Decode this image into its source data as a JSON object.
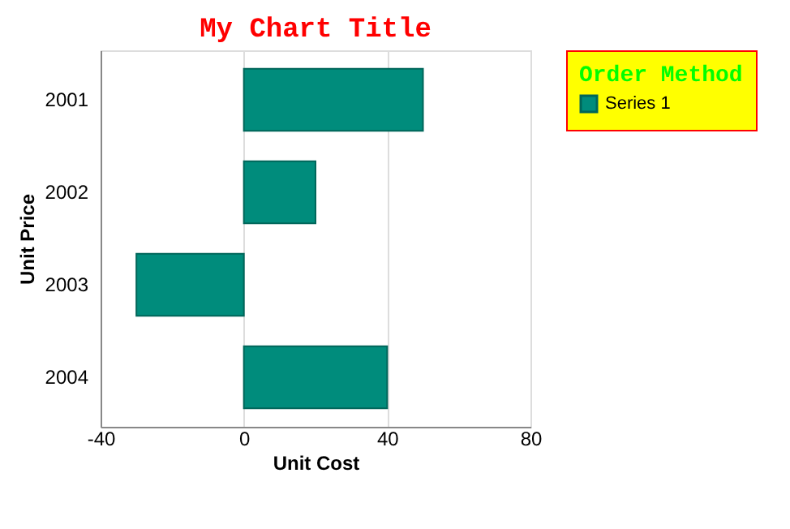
{
  "chart_data": {
    "type": "bar",
    "orientation": "horizontal",
    "title": "My Chart Title",
    "xlabel": "Unit Cost",
    "ylabel": "Unit Price",
    "legend_title": "Order Method",
    "categories": [
      "2001",
      "2002",
      "2003",
      "2004"
    ],
    "series": [
      {
        "name": "Series 1",
        "color": "#008c7c",
        "values": [
          50,
          20,
          -30,
          40
        ]
      }
    ],
    "xlim": [
      -40,
      80
    ],
    "xticks": [
      -40,
      0,
      40,
      80
    ],
    "grid": "x",
    "legend": "right"
  }
}
